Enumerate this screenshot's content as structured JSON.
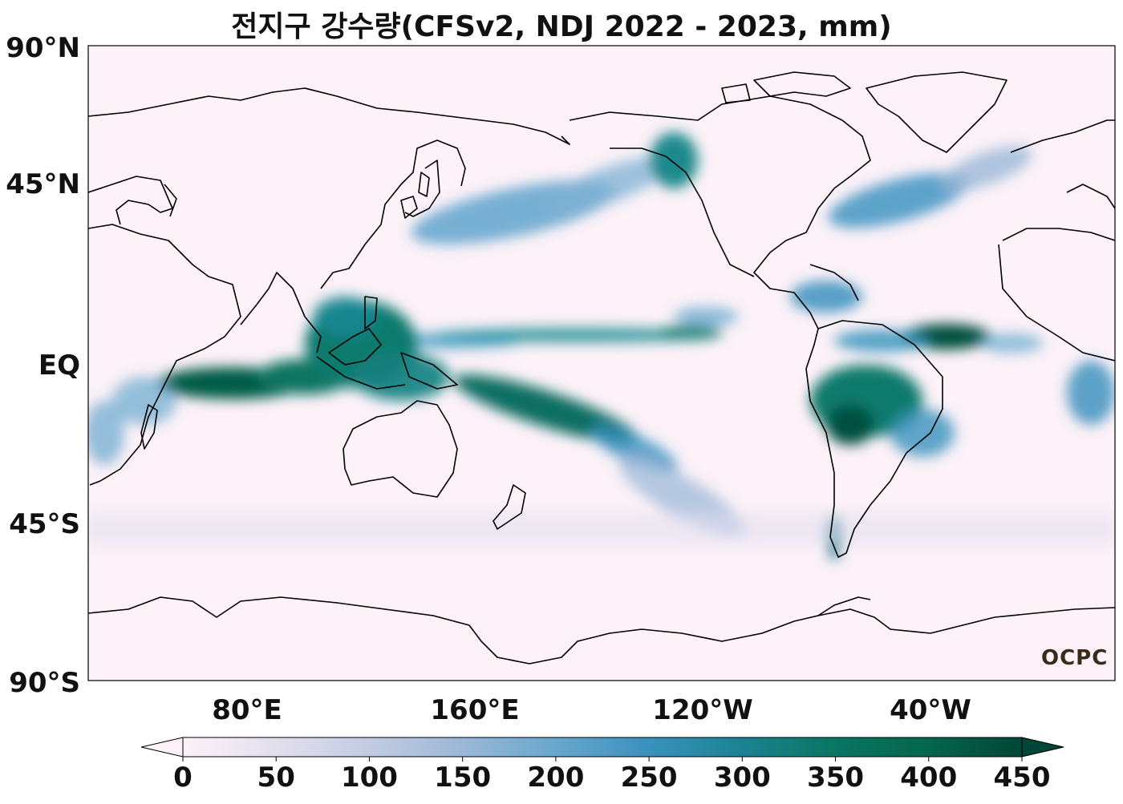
{
  "title": "전지구 강수량(CFSv2, NDJ 2022 - 2023, mm)",
  "watermark": "OCPC",
  "lat_ticks": [
    "90°N",
    "45°N",
    "EQ",
    "45°S",
    "90°S"
  ],
  "lon_ticks": [
    "80°E",
    "160°E",
    "120°W",
    "40°W"
  ],
  "colorbar": {
    "ticks": [
      "0",
      "50",
      "100",
      "150",
      "200",
      "250",
      "300",
      "350",
      "400",
      "450"
    ],
    "min": 0,
    "max": 450,
    "extend": "both",
    "colors": [
      "#fcf2f7",
      "#e2dfee",
      "#c3cbe3",
      "#9ab8d8",
      "#67a7cc",
      "#3a91bd",
      "#1a8392",
      "#097563",
      "#04664c",
      "#014636"
    ]
  },
  "map_data": {
    "type": "heatmap",
    "variable": "precipitation",
    "units": "mm",
    "period": "NDJ 2022 - 2023",
    "projection": "equirectangular",
    "lon_range": [
      30,
      390
    ],
    "lat_range": [
      -90,
      90
    ]
  }
}
